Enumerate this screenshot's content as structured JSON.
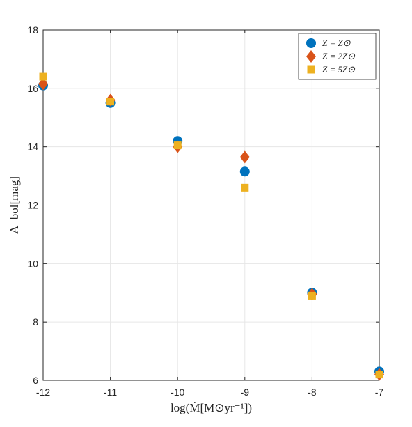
{
  "chart_data": {
    "type": "scatter",
    "xlabel": "log(Ṁ[M⊙yr⁻¹])",
    "ylabel": "A_bol[mag]",
    "xlim": [
      -12,
      -7
    ],
    "ylim": [
      6,
      18
    ],
    "xticks": [
      -12,
      -11,
      -10,
      -9,
      -8,
      -7
    ],
    "yticks": [
      6,
      8,
      10,
      12,
      14,
      16,
      18
    ],
    "grid": true,
    "legend_position": "top-right",
    "series": [
      {
        "name": "Z = Z⊙",
        "marker": "circle",
        "color": "#0072BD",
        "points": [
          {
            "x": -12,
            "y": 16.1
          },
          {
            "x": -11,
            "y": 15.5
          },
          {
            "x": -10,
            "y": 14.2
          },
          {
            "x": -9,
            "y": 13.15
          },
          {
            "x": -8,
            "y": 9.0
          },
          {
            "x": -7,
            "y": 6.3
          }
        ]
      },
      {
        "name": "Z = 2Z⊙",
        "marker": "diamond",
        "color": "#D95319",
        "points": [
          {
            "x": -12,
            "y": 16.15
          },
          {
            "x": -11,
            "y": 15.6
          },
          {
            "x": -10,
            "y": 14.0
          },
          {
            "x": -9,
            "y": 13.65
          },
          {
            "x": -8,
            "y": 8.95
          },
          {
            "x": -7,
            "y": 6.2
          }
        ]
      },
      {
        "name": "Z = 5Z⊙",
        "marker": "square",
        "color": "#EDB120",
        "points": [
          {
            "x": -12,
            "y": 16.4
          },
          {
            "x": -11,
            "y": 15.55
          },
          {
            "x": -10,
            "y": 14.05
          },
          {
            "x": -9,
            "y": 12.6
          },
          {
            "x": -8,
            "y": 8.9
          },
          {
            "x": -7,
            "y": 6.2
          }
        ]
      }
    ]
  }
}
